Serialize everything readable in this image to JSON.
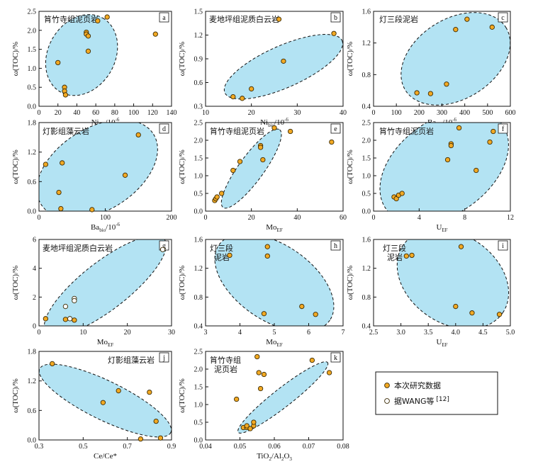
{
  "colors": {
    "ellipse_fill": "#b3e3f3",
    "ellipse_stroke": "#111111",
    "point_fill": "#f2a923",
    "point_stroke": "#3a2a05",
    "open_fill": "#ffffff"
  },
  "legend": {
    "items": [
      {
        "label": "本次研究数据",
        "marker": "filled"
      },
      {
        "label": "据WANG等",
        "ref": "[12]",
        "marker": "open"
      }
    ]
  },
  "chart_data": [
    {
      "id": "a",
      "type": "scatter",
      "title": "筲竹寺组泥页岩",
      "xlabel": "Ni",
      "xsub": "bio",
      "xunit": "/10",
      "xsup": "-6",
      "ylabel": "ω(TOC)/%",
      "xlim": [
        0,
        140
      ],
      "ylim": [
        0,
        2.5
      ],
      "xticks": [
        0,
        20,
        40,
        60,
        80,
        100,
        120,
        140
      ],
      "yticks": [
        0,
        0.5,
        1.0,
        1.5,
        2.0,
        2.5
      ],
      "ydec": 1,
      "ellipse": {
        "cx": 45,
        "cy": 1.35,
        "rx": 45,
        "ry": 0.4,
        "rot": -60
      },
      "series": [
        {
          "marker": "filled",
          "points": [
            [
              20,
              1.15
            ],
            [
              27,
              0.5
            ],
            [
              27,
              0.4
            ],
            [
              28,
              0.3
            ],
            [
              50,
              1.95
            ],
            [
              50,
              1.9
            ],
            [
              52,
              1.85
            ],
            [
              52,
              1.45
            ],
            [
              62,
              2.25
            ],
            [
              72,
              2.35
            ],
            [
              123,
              1.9
            ]
          ]
        }
      ]
    },
    {
      "id": "b",
      "type": "scatter",
      "title": "麦地坪组泥质白云岩",
      "xlabel": "Ni",
      "xsub": "bio",
      "xunit": "/10",
      "xsup": "-6",
      "ylabel": "ω(TOC)/%",
      "xlim": [
        10,
        40
      ],
      "ylim": [
        0.3,
        1.5
      ],
      "xticks": [
        10,
        20,
        30,
        40
      ],
      "yticks": [
        0.3,
        0.6,
        0.9,
        1.2,
        1.5
      ],
      "ydec": 1,
      "ellipse": {
        "cx": 27,
        "cy": 0.8,
        "rx": 14,
        "ry": 0.12,
        "rot": -24
      },
      "series": [
        {
          "marker": "filled",
          "points": [
            [
              16,
              0.42
            ],
            [
              18,
              0.4
            ],
            [
              20,
              0.52
            ],
            [
              26,
              1.4
            ],
            [
              27,
              0.87
            ],
            [
              38,
              1.22
            ]
          ]
        }
      ]
    },
    {
      "id": "c",
      "type": "scatter",
      "title": "灯三段泥岩",
      "xlabel": "Ba",
      "xsub": "bio",
      "xunit": "/10",
      "xsup": "-6",
      "ylabel": "ω(TOC)/%",
      "xlim": [
        0,
        600
      ],
      "ylim": [
        0.4,
        1.6
      ],
      "xticks": [
        0,
        100,
        200,
        300,
        400,
        500,
        600
      ],
      "yticks": [
        0.4,
        0.8,
        1.2,
        1.6
      ],
      "ydec": 1,
      "ellipse": {
        "cx": 360,
        "cy": 1.0,
        "rx": 260,
        "ry": 0.23,
        "rot": -32
      },
      "series": [
        {
          "marker": "filled",
          "points": [
            [
              190,
              0.57
            ],
            [
              250,
              0.56
            ],
            [
              320,
              0.68
            ],
            [
              360,
              1.37
            ],
            [
              410,
              1.5
            ],
            [
              520,
              1.4
            ]
          ]
        }
      ]
    },
    {
      "id": "d",
      "type": "scatter",
      "title": "灯影组藻云岩",
      "xlabel": "Ba",
      "xsub": "bio",
      "xunit": "/10",
      "xsup": "-6",
      "ylabel": "ω(TOC)/%",
      "xlim": [
        0,
        200
      ],
      "ylim": [
        0,
        1.8
      ],
      "xticks": [
        0,
        100,
        200
      ],
      "yticks": [
        0,
        0.6,
        1.2,
        1.8
      ],
      "ydec": 1,
      "ellipse": {
        "cx": 88,
        "cy": 0.85,
        "rx": 100,
        "ry": 0.38,
        "rot": -32
      },
      "series": [
        {
          "marker": "filled",
          "points": [
            [
              10,
              0.95
            ],
            [
              30,
              0.38
            ],
            [
              33,
              0.05
            ],
            [
              35,
              0.98
            ],
            [
              80,
              0.03
            ],
            [
              130,
              0.73
            ],
            [
              150,
              1.55
            ]
          ]
        }
      ]
    },
    {
      "id": "e",
      "type": "scatter",
      "title": "筲竹寺组泥页岩",
      "xlabel": "Mo",
      "xsub": "EF",
      "xunit": "",
      "xsup": "",
      "ylabel": "ω(TOC)/%",
      "xlim": [
        0,
        60
      ],
      "ylim": [
        0,
        2.5
      ],
      "xticks": [
        0,
        20,
        40,
        60
      ],
      "yticks": [
        0,
        0.5,
        1.0,
        1.5,
        2.0,
        2.5
      ],
      "ydec": 1,
      "ellipse": {
        "cx": 20,
        "cy": 1.2,
        "rx": 21,
        "ry": 0.16,
        "rot": -54
      },
      "series": [
        {
          "marker": "filled",
          "points": [
            [
              4,
              0.3
            ],
            [
              4.5,
              0.35
            ],
            [
              5,
              0.4
            ],
            [
              7,
              0.5
            ],
            [
              12,
              1.15
            ],
            [
              15,
              1.4
            ],
            [
              24,
              1.85
            ],
            [
              24,
              1.8
            ],
            [
              25,
              1.45
            ],
            [
              30,
              2.35
            ],
            [
              37,
              2.25
            ],
            [
              55,
              1.95
            ]
          ]
        }
      ]
    },
    {
      "id": "f",
      "type": "scatter",
      "title": "筲竹寺组泥页岩",
      "xlabel": "U",
      "xsub": "EF",
      "xunit": "",
      "xsup": "",
      "ylabel": "ω(TOC)/%",
      "xlim": [
        0,
        12
      ],
      "ylim": [
        0,
        2.5
      ],
      "xticks": [
        0,
        4,
        8,
        12
      ],
      "yticks": [
        0,
        0.5,
        1.0,
        1.5,
        2.0,
        2.5
      ],
      "ydec": 1,
      "ellipse": {
        "cx": 6.2,
        "cy": 1.25,
        "rx": 6.3,
        "ry": 0.6,
        "rot": -36
      },
      "series": [
        {
          "marker": "filled",
          "points": [
            [
              1.8,
              0.4
            ],
            [
              2.0,
              0.35
            ],
            [
              2.2,
              0.45
            ],
            [
              2.5,
              0.5
            ],
            [
              6.8,
              1.9
            ],
            [
              6.8,
              1.85
            ],
            [
              6.5,
              1.45
            ],
            [
              7.5,
              2.35
            ],
            [
              9.0,
              1.15
            ],
            [
              10.2,
              1.95
            ],
            [
              10.5,
              2.25
            ]
          ]
        }
      ]
    },
    {
      "id": "g",
      "type": "scatter",
      "title": "麦地坪组泥质白云岩",
      "xlabel": "Mo",
      "xsub": "EF",
      "xunit": "",
      "xsup": "",
      "ylabel": "ω(TOC)/%",
      "xlim": [
        0,
        30
      ],
      "ylim": [
        0,
        6
      ],
      "xticks": [
        0,
        10,
        20,
        30
      ],
      "yticks": [
        0,
        2,
        4,
        6
      ],
      "ydec": 0,
      "ellipse": {
        "cx": 15,
        "cy": 2.8,
        "rx": 17,
        "ry": 0.75,
        "rot": -38
      },
      "series": [
        {
          "marker": "filled",
          "points": [
            [
              1.5,
              0.5
            ],
            [
              6,
              0.45
            ],
            [
              8,
              0.4
            ]
          ]
        },
        {
          "marker": "open",
          "points": [
            [
              6,
              1.35
            ],
            [
              7,
              0.5
            ],
            [
              8,
              1.9
            ],
            [
              8,
              1.75
            ],
            [
              28,
              5.3
            ]
          ]
        }
      ]
    },
    {
      "id": "h",
      "type": "scatter",
      "title": "灯三段\n泥岩",
      "xlabel": "Mo",
      "xsub": "EF",
      "xunit": "",
      "xsup": "",
      "ylabel": "ω(TOC)/%",
      "xlim": [
        3,
        7
      ],
      "ylim": [
        0.4,
        1.6
      ],
      "xticks": [
        3,
        4,
        5,
        6,
        7
      ],
      "yticks": [
        0.4,
        0.8,
        1.2,
        1.6
      ],
      "ydec": 1,
      "ellipse": {
        "cx": 5.0,
        "cy": 1.0,
        "rx": 1.95,
        "ry": 0.24,
        "rot": 34
      },
      "series": [
        {
          "marker": "filled",
          "points": [
            [
              3.7,
              1.38
            ],
            [
              4.7,
              0.57
            ],
            [
              4.8,
              1.5
            ],
            [
              4.8,
              1.37
            ],
            [
              5.8,
              0.67
            ],
            [
              6.2,
              0.56
            ]
          ]
        }
      ]
    },
    {
      "id": "i",
      "type": "scatter",
      "title": "灯三段\n泥岩",
      "xlabel": "U",
      "xsub": "EF",
      "xunit": "",
      "xsup": "",
      "ylabel": "ω(TOC)/%",
      "xlim": [
        2.5,
        5.0
      ],
      "ylim": [
        0.4,
        1.6
      ],
      "xticks": [
        2.5,
        3.0,
        3.5,
        4.0,
        4.5,
        5.0
      ],
      "yticks": [
        0.4,
        0.8,
        1.2,
        1.6
      ],
      "ydec": 1,
      "xdec": 1,
      "ellipse": {
        "cx": 3.95,
        "cy": 1.05,
        "rx": 1.1,
        "ry": 0.28,
        "rot": 34
      },
      "series": [
        {
          "marker": "filled",
          "points": [
            [
              3.1,
              1.37
            ],
            [
              3.2,
              1.38
            ],
            [
              4.0,
              0.67
            ],
            [
              4.1,
              1.5
            ],
            [
              4.3,
              0.58
            ],
            [
              4.8,
              0.56
            ]
          ]
        }
      ]
    },
    {
      "id": "j",
      "type": "scatter",
      "title": "灯影组藻云岩",
      "xlabel": "Ce/Ce*",
      "xsub": "",
      "xunit": "",
      "xsup": "",
      "ylabel": "ω(TOC)/%",
      "xlim": [
        0.3,
        0.9
      ],
      "ylim": [
        0,
        1.8
      ],
      "xticks": [
        0.3,
        0.5,
        0.7,
        0.9
      ],
      "yticks": [
        0,
        0.6,
        1.2,
        1.8
      ],
      "ydec": 1,
      "xdec": 1,
      "ellipse": {
        "cx": 0.6,
        "cy": 0.8,
        "rx": 0.33,
        "ry": 0.18,
        "rot": 26
      },
      "series": [
        {
          "marker": "filled",
          "points": [
            [
              0.36,
              1.55
            ],
            [
              0.59,
              0.76
            ],
            [
              0.66,
              1.0
            ],
            [
              0.8,
              0.97
            ],
            [
              0.83,
              0.38
            ],
            [
              0.85,
              0.04
            ],
            [
              0.76,
              0.02
            ]
          ]
        }
      ]
    },
    {
      "id": "k",
      "type": "scatter",
      "title": "筲竹寺组\n泥页岩",
      "xlabel": "TiO",
      "xsub": "2",
      "xunit": "/Al",
      "xunit_sub": "2",
      "xtail": "O",
      "xtail_sub": "3",
      "ylabel": "ω(TOC)/%",
      "xlim": [
        0.04,
        0.08
      ],
      "ylim": [
        0,
        2.5
      ],
      "xticks": [
        0.04,
        0.05,
        0.06,
        0.07,
        0.08
      ],
      "yticks": [
        0,
        0.5,
        1.0,
        1.5,
        2.0,
        2.5
      ],
      "ydec": 1,
      "xdec": 2,
      "ellipse": {
        "cx": 0.0625,
        "cy": 1.2,
        "rx": 0.0165,
        "ry": 0.12,
        "rot": -38
      },
      "series": [
        {
          "marker": "filled",
          "points": [
            [
              0.049,
              1.15
            ],
            [
              0.051,
              0.35
            ],
            [
              0.052,
              0.35
            ],
            [
              0.052,
              0.4
            ],
            [
              0.053,
              0.32
            ],
            [
              0.054,
              0.4
            ],
            [
              0.054,
              0.5
            ],
            [
              0.055,
              2.35
            ],
            [
              0.0555,
              1.9
            ],
            [
              0.056,
              1.45
            ],
            [
              0.057,
              1.85
            ],
            [
              0.071,
              2.25
            ],
            [
              0.076,
              1.9
            ]
          ]
        }
      ]
    }
  ]
}
